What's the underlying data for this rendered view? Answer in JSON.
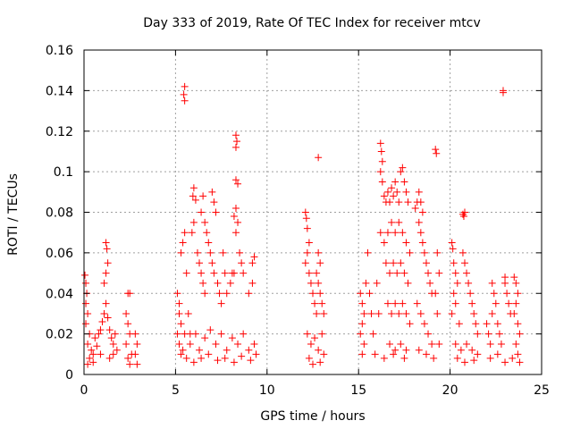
{
  "chart_data": {
    "type": "scatter",
    "title": "Day 333 of 2019, Rate Of TEC Index for receiver mtcv",
    "xlabel": "GPS time / hours",
    "ylabel": "ROTI / TECUs",
    "xlim": [
      0,
      25
    ],
    "ylim": [
      0,
      0.16
    ],
    "xticks": [
      0,
      5,
      10,
      15,
      20,
      25
    ],
    "xtick_labels": [
      "0",
      "5",
      "10",
      "15",
      "20",
      "25"
    ],
    "yticks": [
      0,
      0.02,
      0.04,
      0.06,
      0.08,
      0.1,
      0.12,
      0.14,
      0.16
    ],
    "ytick_labels": [
      "0",
      "0.02",
      "0.04",
      "0.06",
      "0.08",
      "0.1",
      "0.12",
      "0.14",
      "0.16"
    ],
    "grid": true,
    "marker": "+",
    "color": "#ff0000",
    "series": [
      {
        "values_note_free": true,
        "points": [
          [
            0.05,
            0.049
          ],
          [
            0.1,
            0.045
          ],
          [
            0.15,
            0.04
          ],
          [
            0.1,
            0.035
          ],
          [
            0.2,
            0.03
          ],
          [
            0.1,
            0.025
          ],
          [
            0.3,
            0.02
          ],
          [
            0.2,
            0.015
          ],
          [
            0.4,
            0.012
          ],
          [
            0.3,
            0.008
          ],
          [
            0.5,
            0.01
          ],
          [
            0.6,
            0.018
          ],
          [
            0.7,
            0.014
          ],
          [
            0.8,
            0.02
          ],
          [
            0.9,
            0.022
          ],
          [
            1.0,
            0.026
          ],
          [
            1.1,
            0.03
          ],
          [
            1.2,
            0.035
          ],
          [
            1.3,
            0.028
          ],
          [
            1.4,
            0.022
          ],
          [
            1.5,
            0.018
          ],
          [
            1.6,
            0.015
          ],
          [
            1.7,
            0.02
          ],
          [
            1.8,
            0.012
          ],
          [
            1.2,
            0.065
          ],
          [
            1.25,
            0.062
          ],
          [
            1.3,
            0.055
          ],
          [
            1.2,
            0.05
          ],
          [
            1.1,
            0.045
          ],
          [
            0.9,
            0.01
          ],
          [
            1.4,
            0.008
          ],
          [
            1.6,
            0.01
          ],
          [
            0.2,
            0.005
          ],
          [
            0.5,
            0.006
          ],
          [
            2.4,
            0.04
          ],
          [
            2.5,
            0.04
          ],
          [
            2.3,
            0.03
          ],
          [
            2.4,
            0.025
          ],
          [
            2.5,
            0.02
          ],
          [
            2.3,
            0.015
          ],
          [
            2.6,
            0.01
          ],
          [
            2.4,
            0.008
          ],
          [
            2.8,
            0.02
          ],
          [
            2.9,
            0.015
          ],
          [
            2.8,
            0.01
          ],
          [
            2.9,
            0.005
          ],
          [
            2.5,
            0.005
          ],
          [
            5.1,
            0.04
          ],
          [
            5.2,
            0.035
          ],
          [
            5.2,
            0.03
          ],
          [
            5.3,
            0.025
          ],
          [
            5.1,
            0.02
          ],
          [
            5.2,
            0.015
          ],
          [
            5.3,
            0.01
          ],
          [
            5.4,
            0.012
          ],
          [
            5.5,
            0.142
          ],
          [
            5.45,
            0.138
          ],
          [
            5.5,
            0.135
          ],
          [
            5.5,
            0.07
          ],
          [
            5.4,
            0.065
          ],
          [
            5.3,
            0.06
          ],
          [
            5.6,
            0.05
          ],
          [
            5.7,
            0.03
          ],
          [
            5.8,
            0.02
          ],
          [
            6.0,
            0.092
          ],
          [
            5.95,
            0.088
          ],
          [
            6.1,
            0.086
          ],
          [
            6.0,
            0.075
          ],
          [
            5.9,
            0.07
          ],
          [
            6.2,
            0.06
          ],
          [
            6.3,
            0.055
          ],
          [
            6.4,
            0.05
          ],
          [
            6.5,
            0.045
          ],
          [
            6.6,
            0.04
          ],
          [
            6.5,
            0.088
          ],
          [
            6.4,
            0.08
          ],
          [
            6.6,
            0.075
          ],
          [
            6.7,
            0.07
          ],
          [
            6.8,
            0.065
          ],
          [
            6.9,
            0.06
          ],
          [
            7.0,
            0.09
          ],
          [
            7.1,
            0.085
          ],
          [
            7.2,
            0.08
          ],
          [
            7.0,
            0.055
          ],
          [
            7.1,
            0.05
          ],
          [
            7.3,
            0.045
          ],
          [
            7.4,
            0.04
          ],
          [
            7.5,
            0.035
          ],
          [
            7.6,
            0.06
          ],
          [
            7.7,
            0.05
          ],
          [
            7.8,
            0.04
          ],
          [
            8.0,
            0.045
          ],
          [
            8.1,
            0.05
          ],
          [
            8.2,
            0.05
          ],
          [
            8.3,
            0.118
          ],
          [
            8.35,
            0.115
          ],
          [
            8.3,
            0.112
          ],
          [
            8.3,
            0.096
          ],
          [
            8.4,
            0.094
          ],
          [
            8.3,
            0.082
          ],
          [
            8.2,
            0.078
          ],
          [
            8.4,
            0.075
          ],
          [
            8.3,
            0.07
          ],
          [
            8.5,
            0.06
          ],
          [
            8.6,
            0.055
          ],
          [
            8.7,
            0.05
          ],
          [
            9.0,
            0.04
          ],
          [
            9.2,
            0.055
          ],
          [
            9.3,
            0.058
          ],
          [
            9.2,
            0.045
          ],
          [
            5.5,
            0.02
          ],
          [
            5.8,
            0.015
          ],
          [
            6.1,
            0.02
          ],
          [
            6.3,
            0.012
          ],
          [
            6.6,
            0.018
          ],
          [
            6.9,
            0.022
          ],
          [
            7.2,
            0.015
          ],
          [
            7.5,
            0.02
          ],
          [
            7.8,
            0.012
          ],
          [
            8.1,
            0.018
          ],
          [
            8.4,
            0.015
          ],
          [
            8.7,
            0.02
          ],
          [
            9.0,
            0.012
          ],
          [
            9.3,
            0.015
          ],
          [
            5.6,
            0.008
          ],
          [
            6.0,
            0.006
          ],
          [
            6.4,
            0.008
          ],
          [
            6.8,
            0.01
          ],
          [
            7.3,
            0.007
          ],
          [
            7.7,
            0.008
          ],
          [
            8.2,
            0.006
          ],
          [
            8.6,
            0.009
          ],
          [
            9.1,
            0.007
          ],
          [
            9.4,
            0.01
          ],
          [
            12.1,
            0.08
          ],
          [
            12.15,
            0.077
          ],
          [
            12.2,
            0.072
          ],
          [
            12.3,
            0.065
          ],
          [
            12.2,
            0.06
          ],
          [
            12.1,
            0.055
          ],
          [
            12.3,
            0.05
          ],
          [
            12.4,
            0.045
          ],
          [
            12.5,
            0.04
          ],
          [
            12.6,
            0.035
          ],
          [
            12.7,
            0.03
          ],
          [
            12.8,
            0.107
          ],
          [
            12.8,
            0.06
          ],
          [
            12.9,
            0.055
          ],
          [
            12.7,
            0.05
          ],
          [
            12.8,
            0.045
          ],
          [
            12.9,
            0.04
          ],
          [
            13.0,
            0.035
          ],
          [
            13.1,
            0.03
          ],
          [
            12.2,
            0.02
          ],
          [
            12.4,
            0.015
          ],
          [
            12.6,
            0.018
          ],
          [
            12.8,
            0.012
          ],
          [
            13.0,
            0.02
          ],
          [
            12.3,
            0.008
          ],
          [
            12.5,
            0.005
          ],
          [
            12.9,
            0.006
          ],
          [
            13.1,
            0.01
          ],
          [
            15.1,
            0.04
          ],
          [
            15.2,
            0.035
          ],
          [
            15.3,
            0.03
          ],
          [
            15.2,
            0.025
          ],
          [
            15.1,
            0.02
          ],
          [
            15.3,
            0.015
          ],
          [
            15.2,
            0.01
          ],
          [
            15.4,
            0.045
          ],
          [
            15.5,
            0.06
          ],
          [
            15.6,
            0.04
          ],
          [
            15.7,
            0.03
          ],
          [
            15.8,
            0.02
          ],
          [
            15.9,
            0.01
          ],
          [
            16.0,
            0.045
          ],
          [
            16.1,
            0.03
          ],
          [
            16.2,
            0.114
          ],
          [
            16.25,
            0.11
          ],
          [
            16.3,
            0.105
          ],
          [
            16.2,
            0.1
          ],
          [
            16.3,
            0.095
          ],
          [
            16.4,
            0.088
          ],
          [
            16.5,
            0.085
          ],
          [
            16.6,
            0.09
          ],
          [
            16.7,
            0.085
          ],
          [
            16.8,
            0.092
          ],
          [
            16.9,
            0.088
          ],
          [
            17.0,
            0.095
          ],
          [
            17.1,
            0.09
          ],
          [
            17.2,
            0.085
          ],
          [
            17.3,
            0.1
          ],
          [
            17.4,
            0.102
          ],
          [
            17.5,
            0.095
          ],
          [
            17.6,
            0.09
          ],
          [
            17.7,
            0.085
          ],
          [
            16.2,
            0.07
          ],
          [
            16.4,
            0.065
          ],
          [
            16.6,
            0.07
          ],
          [
            16.8,
            0.075
          ],
          [
            17.0,
            0.07
          ],
          [
            17.2,
            0.075
          ],
          [
            17.4,
            0.07
          ],
          [
            17.6,
            0.065
          ],
          [
            17.8,
            0.06
          ],
          [
            16.5,
            0.055
          ],
          [
            16.7,
            0.05
          ],
          [
            16.9,
            0.055
          ],
          [
            17.1,
            0.05
          ],
          [
            17.3,
            0.055
          ],
          [
            17.5,
            0.05
          ],
          [
            17.7,
            0.045
          ],
          [
            16.6,
            0.035
          ],
          [
            16.8,
            0.03
          ],
          [
            17.0,
            0.035
          ],
          [
            17.2,
            0.03
          ],
          [
            17.4,
            0.035
          ],
          [
            17.6,
            0.03
          ],
          [
            17.8,
            0.025
          ],
          [
            16.7,
            0.015
          ],
          [
            17.0,
            0.012
          ],
          [
            17.3,
            0.015
          ],
          [
            17.6,
            0.012
          ],
          [
            16.4,
            0.008
          ],
          [
            16.9,
            0.01
          ],
          [
            17.5,
            0.008
          ],
          [
            18.1,
            0.082
          ],
          [
            18.2,
            0.085
          ],
          [
            18.3,
            0.09
          ],
          [
            18.4,
            0.085
          ],
          [
            18.5,
            0.08
          ],
          [
            18.3,
            0.075
          ],
          [
            18.4,
            0.07
          ],
          [
            18.5,
            0.065
          ],
          [
            18.6,
            0.06
          ],
          [
            18.7,
            0.055
          ],
          [
            18.8,
            0.05
          ],
          [
            18.9,
            0.045
          ],
          [
            19.0,
            0.04
          ],
          [
            19.2,
            0.111
          ],
          [
            19.25,
            0.109
          ],
          [
            19.3,
            0.06
          ],
          [
            19.4,
            0.05
          ],
          [
            19.2,
            0.04
          ],
          [
            19.3,
            0.03
          ],
          [
            18.2,
            0.035
          ],
          [
            18.4,
            0.03
          ],
          [
            18.6,
            0.025
          ],
          [
            18.8,
            0.02
          ],
          [
            19.0,
            0.015
          ],
          [
            18.3,
            0.012
          ],
          [
            18.7,
            0.01
          ],
          [
            19.1,
            0.008
          ],
          [
            19.4,
            0.015
          ],
          [
            20.1,
            0.065
          ],
          [
            20.15,
            0.062
          ],
          [
            20.2,
            0.055
          ],
          [
            20.3,
            0.05
          ],
          [
            20.4,
            0.045
          ],
          [
            20.2,
            0.04
          ],
          [
            20.3,
            0.035
          ],
          [
            20.1,
            0.03
          ],
          [
            20.5,
            0.025
          ],
          [
            20.7,
            0.079
          ],
          [
            20.75,
            0.078
          ],
          [
            20.8,
            0.08
          ],
          [
            20.7,
            0.06
          ],
          [
            20.8,
            0.055
          ],
          [
            20.9,
            0.05
          ],
          [
            21.0,
            0.045
          ],
          [
            21.1,
            0.04
          ],
          [
            21.2,
            0.035
          ],
          [
            21.3,
            0.03
          ],
          [
            21.4,
            0.025
          ],
          [
            21.5,
            0.02
          ],
          [
            20.3,
            0.015
          ],
          [
            20.6,
            0.012
          ],
          [
            20.9,
            0.015
          ],
          [
            21.2,
            0.012
          ],
          [
            21.5,
            0.01
          ],
          [
            20.4,
            0.008
          ],
          [
            20.8,
            0.006
          ],
          [
            21.3,
            0.007
          ],
          [
            22.0,
            0.025
          ],
          [
            22.1,
            0.02
          ],
          [
            22.2,
            0.015
          ],
          [
            22.3,
            0.045
          ],
          [
            22.4,
            0.04
          ],
          [
            22.5,
            0.035
          ],
          [
            22.3,
            0.03
          ],
          [
            22.6,
            0.025
          ],
          [
            22.7,
            0.02
          ],
          [
            22.8,
            0.015
          ],
          [
            22.9,
            0.139
          ],
          [
            22.9,
            0.14
          ],
          [
            23.0,
            0.048
          ],
          [
            23.0,
            0.045
          ],
          [
            23.1,
            0.04
          ],
          [
            23.2,
            0.035
          ],
          [
            23.3,
            0.03
          ],
          [
            23.5,
            0.048
          ],
          [
            23.6,
            0.045
          ],
          [
            23.7,
            0.04
          ],
          [
            23.6,
            0.035
          ],
          [
            23.5,
            0.03
          ],
          [
            23.7,
            0.025
          ],
          [
            23.8,
            0.02
          ],
          [
            23.6,
            0.015
          ],
          [
            23.7,
            0.01
          ],
          [
            22.2,
            0.008
          ],
          [
            22.6,
            0.01
          ],
          [
            23.0,
            0.006
          ],
          [
            23.4,
            0.008
          ],
          [
            23.8,
            0.006
          ]
        ]
      }
    ]
  }
}
